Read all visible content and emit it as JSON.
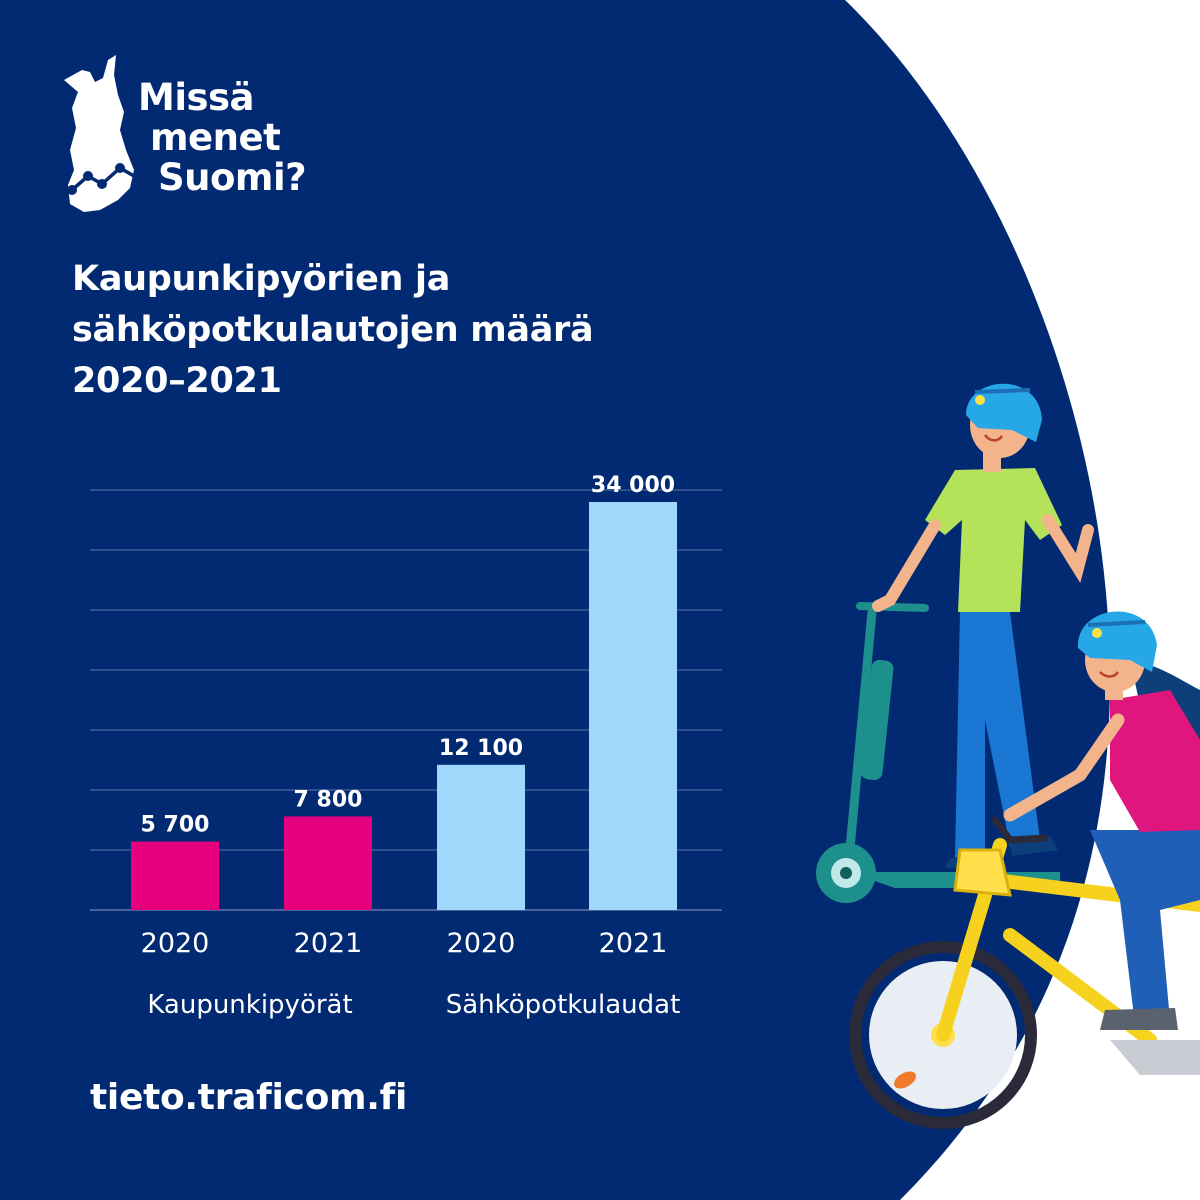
{
  "logo": {
    "lines": [
      "Missä",
      "menet",
      "Suomi?"
    ],
    "icon": "finland-map-icon"
  },
  "title": {
    "lines": [
      "Kaupunkipyörien ja",
      "sähköpotkulautojen määrä",
      "2020–2021"
    ]
  },
  "footer": {
    "url": "tieto.traficom.fi"
  },
  "colors": {
    "background": "#022a72",
    "bikes": "#e6007e",
    "scooters": "#9fd8fb",
    "text": "#ffffff",
    "gridline": "#5c76a8"
  },
  "chart_data": {
    "type": "bar",
    "title": "Kaupunkipyörien ja sähköpotkulautojen määrä 2020–2021",
    "ylim": [
      0,
      35000
    ],
    "grid": true,
    "bars": [
      {
        "category": "2020",
        "group": "Kaupunkipyörät",
        "value": 5700,
        "label": "5 700",
        "color": "#e6007e"
      },
      {
        "category": "2021",
        "group": "Kaupunkipyörät",
        "value": 7800,
        "label": "7 800",
        "color": "#e6007e"
      },
      {
        "category": "2020",
        "group": "Sähköpotkulaudat",
        "value": 12100,
        "label": "12 100",
        "color": "#9fd8fb"
      },
      {
        "category": "2021",
        "group": "Sähköpotkulaudat",
        "value": 34000,
        "label": "34 000",
        "color": "#9fd8fb"
      }
    ],
    "groups": [
      "Kaupunkipyörät",
      "Sähköpotkulaudat"
    ]
  },
  "illustration": {
    "icons": [
      "person-on-scooter-icon",
      "person-on-bicycle-icon"
    ]
  }
}
